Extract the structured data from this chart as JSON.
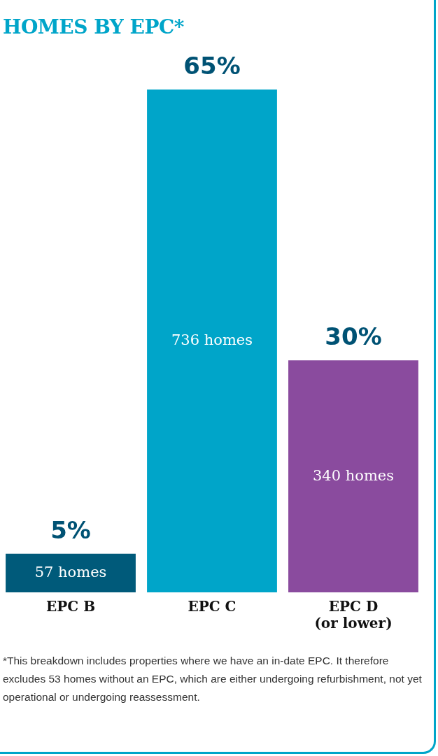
{
  "chart_data": {
    "type": "bar",
    "title": "HOMES BY EPC*",
    "categories": [
      "EPC B",
      "EPC C",
      "EPC D\n(or lower)"
    ],
    "values": [
      5,
      65,
      30
    ],
    "colors": [
      "#005a7a",
      "#00a5c9",
      "#8a4b9e"
    ],
    "data_labels": true,
    "value_labels": [
      "5%",
      "65%",
      "30%"
    ],
    "grid": false,
    "legend": false,
    "annotations": [
      "57 homes",
      "736 homes",
      "340 homes",
      "*This breakdown includes properties where we have an in-date EPC. It therefore excludes 53 homes without an EPC, which are either undergoing refurbishment, not yet operational or undergoing reassessment."
    ]
  }
}
